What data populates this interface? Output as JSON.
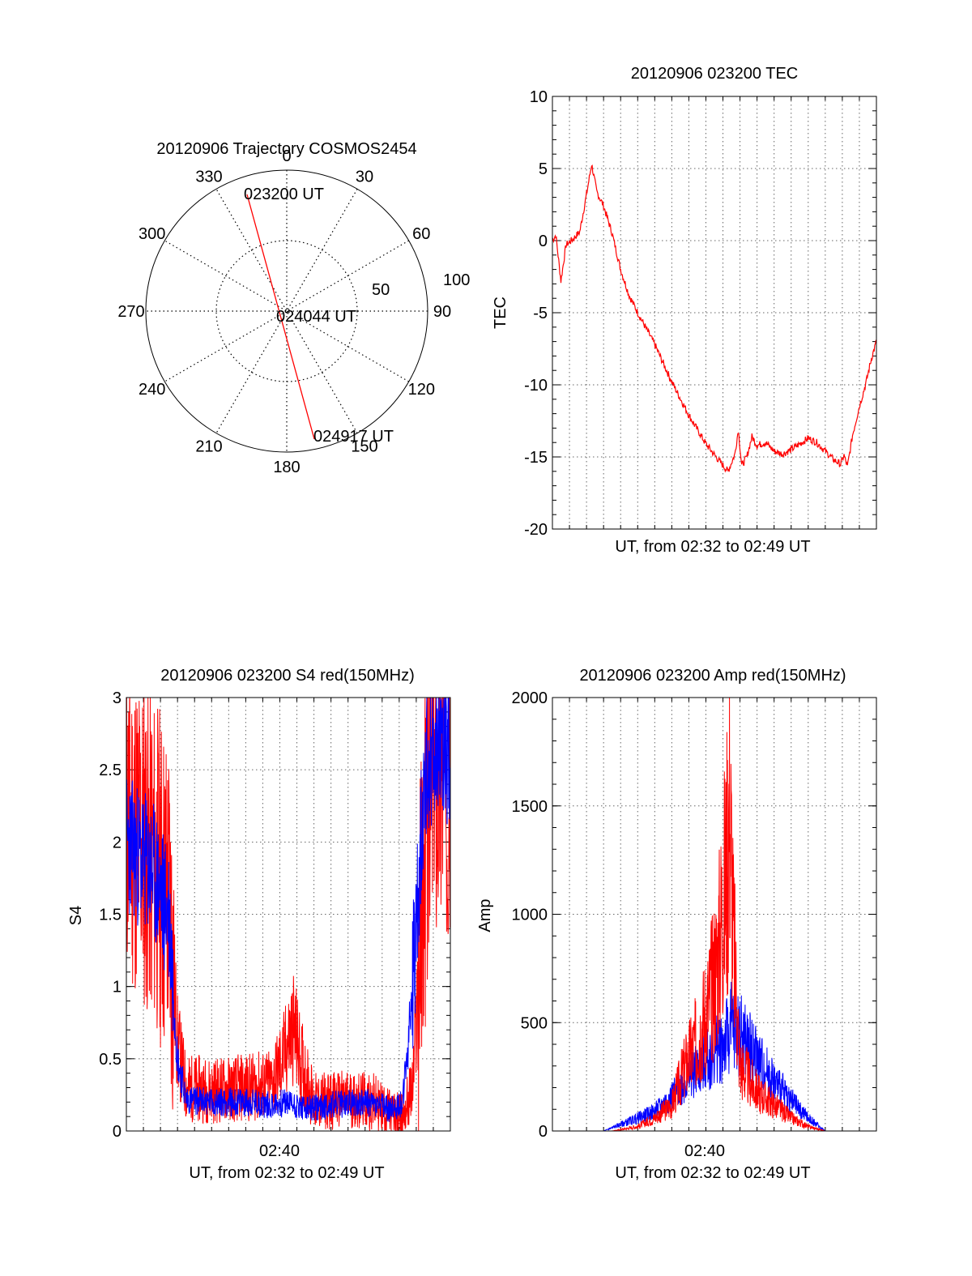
{
  "figure": {
    "polar": {
      "title": "20120906 Trajectory COSMOS2454",
      "azimuth_labels": [
        "0",
        "30",
        "60",
        "90",
        "120",
        "150",
        "180",
        "210",
        "240",
        "270",
        "300",
        "330"
      ],
      "radius_labels": [
        "50",
        "100"
      ],
      "start_label": "023200 UT",
      "mid_label": "024044 UT",
      "end_label": "024917 UT"
    },
    "tec": {
      "title": "20120906 023200 TEC",
      "ylabel": "TEC",
      "xlabel": "UT, from 02:32 to 02:49 UT",
      "yticks": [
        "10",
        "5",
        "0",
        "-5",
        "-10",
        "-15",
        "-20"
      ]
    },
    "s4": {
      "title": "20120906 023200 S4 red(150MHz)",
      "ylabel": "S4",
      "xlabel": "UT, from 02:32 to 02:49 UT",
      "xtick": "02:40",
      "yticks": [
        "3",
        "2.5",
        "2",
        "1.5",
        "1",
        "0.5",
        "0"
      ]
    },
    "amp": {
      "title": "20120906 023200 Amp red(150MHz)",
      "ylabel": "Amp",
      "xlabel": "UT, from 02:32 to 02:49 UT",
      "xtick": "02:40",
      "yticks": [
        "2000",
        "1500",
        "1000",
        "500",
        "0"
      ]
    }
  },
  "chart_data": [
    {
      "type": "line",
      "subtype": "polar-trajectory",
      "title": "20120906 Trajectory COSMOS2454",
      "azimuth_deg_ticks": [
        0,
        30,
        60,
        90,
        120,
        150,
        180,
        210,
        240,
        270,
        300,
        330
      ],
      "radius_ticks": [
        50,
        100
      ],
      "trajectory": [
        {
          "time": "023200 UT",
          "azimuth": 340,
          "radius": 95
        },
        {
          "time": "024044 UT",
          "azimuth": 0,
          "radius": 0
        },
        {
          "time": "024917 UT",
          "azimuth": 158,
          "radius": 92
        }
      ],
      "line_color": "#ff0000"
    },
    {
      "type": "line",
      "title": "20120906 023200 TEC",
      "xlabel": "UT, from 02:32 to 02:49 UT",
      "ylabel": "TEC",
      "ylim": [
        -20,
        10
      ],
      "yticks": [
        10,
        5,
        0,
        -5,
        -10,
        -15,
        -20
      ],
      "grid": true,
      "series": [
        {
          "color": "#ff0000",
          "points": [
            [
              0,
              0
            ],
            [
              0.2,
              0.4
            ],
            [
              0.5,
              -2.8
            ],
            [
              0.8,
              -0.3
            ],
            [
              1.2,
              0.1
            ],
            [
              1.6,
              0.6
            ],
            [
              2.0,
              3.2
            ],
            [
              2.3,
              5.3
            ],
            [
              2.6,
              3.4
            ],
            [
              3.0,
              2.4
            ],
            [
              3.5,
              0.5
            ],
            [
              4.0,
              -2.0
            ],
            [
              4.5,
              -3.8
            ],
            [
              5.0,
              -5.0
            ],
            [
              6.0,
              -7.2
            ],
            [
              7.0,
              -9.8
            ],
            [
              8.0,
              -12.1
            ],
            [
              9.0,
              -14.1
            ],
            [
              9.8,
              -15.3
            ],
            [
              10.3,
              -16.0
            ],
            [
              10.7,
              -14.8
            ],
            [
              10.9,
              -13.1
            ],
            [
              11.1,
              -15.6
            ],
            [
              11.4,
              -15.0
            ],
            [
              11.7,
              -13.6
            ],
            [
              12.0,
              -14.2
            ],
            [
              12.5,
              -14.0
            ],
            [
              13.0,
              -14.6
            ],
            [
              13.5,
              -14.8
            ],
            [
              14.0,
              -14.5
            ],
            [
              14.5,
              -14.1
            ],
            [
              15.0,
              -13.7
            ],
            [
              15.5,
              -14.0
            ],
            [
              16.0,
              -14.6
            ],
            [
              16.5,
              -15.2
            ],
            [
              16.9,
              -15.5
            ],
            [
              17.1,
              -14.9
            ],
            [
              17.3,
              -15.7
            ],
            [
              17.6,
              -13.5
            ],
            [
              18.0,
              -11.5
            ],
            [
              18.4,
              -9.8
            ],
            [
              18.7,
              -8.2
            ],
            [
              19.0,
              -7.0
            ]
          ]
        }
      ]
    },
    {
      "type": "line",
      "title": "20120906 023200 S4 red(150MHz)",
      "xlabel": "UT, from 02:32 to 02:49 UT",
      "ylabel": "S4",
      "xticks": [
        "02:40"
      ],
      "ylim": [
        0,
        3
      ],
      "yticks": [
        3,
        2.5,
        2,
        1.5,
        1,
        0.5,
        0
      ],
      "grid": true,
      "series": [
        {
          "color": "#ff0000",
          "points": [
            [
              0,
              2.2
            ],
            [
              1.5,
              1.9
            ],
            [
              2.5,
              1.6
            ],
            [
              3.0,
              0.6
            ],
            [
              3.5,
              0.3
            ],
            [
              5.0,
              0.28
            ],
            [
              7.0,
              0.3
            ],
            [
              8.5,
              0.32
            ],
            [
              9.2,
              0.5
            ],
            [
              9.8,
              0.72
            ],
            [
              10.2,
              0.5
            ],
            [
              11.0,
              0.2
            ],
            [
              13.0,
              0.22
            ],
            [
              14.5,
              0.2
            ],
            [
              15.5,
              0.12
            ],
            [
              16.2,
              0.1
            ],
            [
              16.8,
              0.3
            ],
            [
              17.3,
              1.5
            ],
            [
              17.8,
              2.4
            ],
            [
              18.5,
              2.6
            ],
            [
              19.0,
              2.5
            ]
          ]
        },
        {
          "color": "#0000ff",
          "points": [
            [
              0,
              2.0
            ],
            [
              1.5,
              1.8
            ],
            [
              2.5,
              1.5
            ],
            [
              3.0,
              0.5
            ],
            [
              3.5,
              0.22
            ],
            [
              5.0,
              0.2
            ],
            [
              7.0,
              0.2
            ],
            [
              8.5,
              0.18
            ],
            [
              9.5,
              0.2
            ],
            [
              10.5,
              0.15
            ],
            [
              12.0,
              0.18
            ],
            [
              14.0,
              0.2
            ],
            [
              15.5,
              0.15
            ],
            [
              16.2,
              0.2
            ],
            [
              16.5,
              0.55
            ],
            [
              17.0,
              1.4
            ],
            [
              17.5,
              2.5
            ],
            [
              18.2,
              2.7
            ],
            [
              19.0,
              2.6
            ]
          ]
        }
      ]
    },
    {
      "type": "line",
      "title": "20120906 023200 Amp red(150MHz)",
      "xlabel": "UT, from 02:32 to 02:49 UT",
      "ylabel": "Amp",
      "xticks": [
        "02:40"
      ],
      "ylim": [
        0,
        2000
      ],
      "yticks": [
        2000,
        1500,
        1000,
        500,
        0
      ],
      "grid": true,
      "series": [
        {
          "color": "#0000ff",
          "points": [
            [
              0,
              0
            ],
            [
              3.0,
              0
            ],
            [
              4.0,
              30
            ],
            [
              5.0,
              60
            ],
            [
              6.0,
              90
            ],
            [
              7.0,
              160
            ],
            [
              8.0,
              250
            ],
            [
              9.0,
              320
            ],
            [
              10.0,
              400
            ],
            [
              10.5,
              480
            ],
            [
              11.0,
              450
            ],
            [
              12.0,
              340
            ],
            [
              13.0,
              230
            ],
            [
              14.0,
              140
            ],
            [
              15.0,
              60
            ],
            [
              16.0,
              0
            ],
            [
              19.0,
              0
            ]
          ]
        },
        {
          "color": "#ff0000",
          "points": [
            [
              0,
              0
            ],
            [
              3.5,
              0
            ],
            [
              5.0,
              20
            ],
            [
              6.0,
              60
            ],
            [
              7.0,
              120
            ],
            [
              7.8,
              300
            ],
            [
              8.5,
              420
            ],
            [
              9.2,
              600
            ],
            [
              9.7,
              800
            ],
            [
              10.2,
              1200
            ],
            [
              10.4,
              1540
            ],
            [
              10.6,
              900
            ],
            [
              11.0,
              300
            ],
            [
              12.0,
              180
            ],
            [
              13.0,
              120
            ],
            [
              14.0,
              60
            ],
            [
              15.0,
              20
            ],
            [
              16.0,
              0
            ],
            [
              19.0,
              0
            ]
          ]
        }
      ]
    }
  ]
}
